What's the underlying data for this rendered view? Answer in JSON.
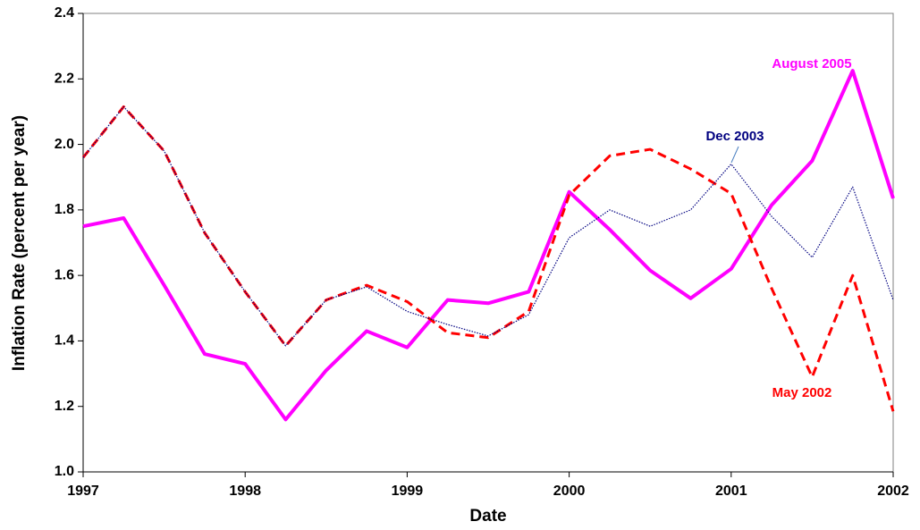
{
  "chart_data": {
    "type": "line",
    "x_label": "Date",
    "y_label": "Inflation Rate (percent per year)",
    "x": [
      1997,
      1997.25,
      1997.5,
      1997.75,
      1998,
      1998.25,
      1998.5,
      1998.75,
      1999,
      1999.25,
      1999.5,
      1999.75,
      2000,
      2000.25,
      2000.5,
      2000.75,
      2001,
      2001.25,
      2001.5,
      2001.75,
      2002
    ],
    "series": [
      {
        "name": "August 2005",
        "color": "#ff00ff",
        "style": "solid",
        "values": [
          1.75,
          1.775,
          1.57,
          1.36,
          1.33,
          1.16,
          1.31,
          1.43,
          1.38,
          1.525,
          1.515,
          1.55,
          1.855,
          1.74,
          1.615,
          1.53,
          1.62,
          1.815,
          1.95,
          2.225,
          1.835
        ]
      },
      {
        "name": "May 2002",
        "color": "#ff0000",
        "style": "dashed",
        "values": [
          1.96,
          2.115,
          1.98,
          1.73,
          1.55,
          1.385,
          1.525,
          1.57,
          1.52,
          1.425,
          1.41,
          1.49,
          1.845,
          1.965,
          1.985,
          1.925,
          1.85,
          1.56,
          1.29,
          1.6,
          1.185
        ]
      },
      {
        "name": "Dec 2003",
        "color": "#000080",
        "style": "dotted",
        "values": [
          1.96,
          2.115,
          1.98,
          1.73,
          1.55,
          1.385,
          1.525,
          1.565,
          1.49,
          1.45,
          1.415,
          1.48,
          1.715,
          1.8,
          1.75,
          1.8,
          1.94,
          1.78,
          1.655,
          1.87,
          1.525
        ]
      }
    ],
    "xlim": [
      1997,
      2002
    ],
    "ylim": [
      1.0,
      2.4
    ],
    "xticks": [
      1997,
      1998,
      1999,
      2000,
      2001,
      2002
    ],
    "yticks": [
      {
        "value": 1.0,
        "label": "1.0"
      },
      1.2,
      1.4,
      1.6,
      1.8,
      {
        "value": 2.0,
        "label": "2.0"
      },
      2.2,
      2.4
    ]
  }
}
